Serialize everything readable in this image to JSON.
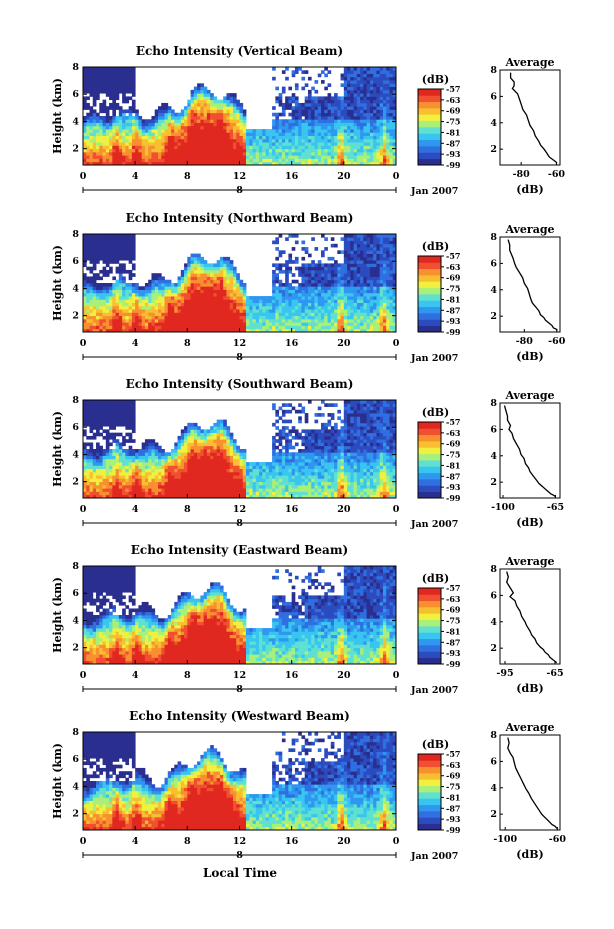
{
  "figure": {
    "xlabel": "Local Time",
    "date_label": "Jan 2007"
  },
  "colors": {
    "colormap": [
      "#2a2f8f",
      "#2b4bbf",
      "#2f6fe0",
      "#2f97f0",
      "#38c6f0",
      "#5fe0d0",
      "#a8f07a",
      "#f0f040",
      "#f8c030",
      "#f89030",
      "#f05030",
      "#e02820"
    ]
  },
  "chart_data": [
    {
      "type": "heatmap",
      "title": "Echo Intensity (Vertical Beam)",
      "ylabel": "Height (km)",
      "x_ticks": [
        "0",
        "4",
        "8",
        "12",
        "16",
        "20",
        "0"
      ],
      "day_label": "8",
      "y_ticks": [
        "2",
        "4",
        "6",
        "8"
      ],
      "xlim": [
        0,
        24
      ],
      "ylim": [
        0.8,
        8
      ],
      "colorbar": {
        "unit": "(dB)",
        "ticks": [
          "-57",
          "-63",
          "-69",
          "-75",
          "-81",
          "-87",
          "-93",
          "-99"
        ],
        "range": [
          -99,
          -57
        ]
      },
      "profile": {
        "title": "Average",
        "xlabel": "(dB)",
        "x_ticks": [
          "-80",
          "-60"
        ],
        "y_ticks": [
          "2",
          "4",
          "6",
          "8"
        ],
        "xlim": [
          -92,
          -58
        ],
        "ylim": [
          0.8,
          8
        ],
        "x": [
          -86,
          -86,
          -84,
          -84,
          -85,
          -82,
          -81,
          -80,
          -79,
          -77,
          -76,
          -75,
          -73,
          -72,
          -70,
          -69,
          -67,
          -66,
          -65,
          -64,
          -63,
          -61,
          -60,
          -60
        ],
        "y": [
          7.8,
          7.4,
          7.1,
          6.8,
          6.6,
          6.2,
          5.8,
          5.4,
          5.0,
          4.6,
          4.2,
          3.8,
          3.4,
          3.0,
          2.6,
          2.3,
          2.0,
          1.8,
          1.6,
          1.4,
          1.3,
          1.1,
          1.0,
          0.9
        ]
      }
    },
    {
      "type": "heatmap",
      "title": "Echo Intensity (Northward Beam)",
      "ylabel": "Height (km)",
      "x_ticks": [
        "0",
        "4",
        "8",
        "12",
        "16",
        "20",
        "0"
      ],
      "day_label": "8",
      "y_ticks": [
        "2",
        "4",
        "6",
        "8"
      ],
      "xlim": [
        0,
        24
      ],
      "ylim": [
        0.8,
        8
      ],
      "colorbar": {
        "unit": "(dB)",
        "ticks": [
          "-57",
          "-63",
          "-69",
          "-75",
          "-81",
          "-87",
          "-93",
          "-99"
        ],
        "range": [
          -99,
          -57
        ]
      },
      "profile": {
        "title": "Average",
        "xlabel": "(dB)",
        "x_ticks": [
          "-80",
          "-60"
        ],
        "y_ticks": [
          "2",
          "4",
          "6",
          "8"
        ],
        "xlim": [
          -95,
          -58
        ],
        "ylim": [
          0.8,
          8
        ],
        "x": [
          -90,
          -89,
          -89,
          -88,
          -87,
          -86,
          -85,
          -83,
          -81,
          -80,
          -78,
          -77,
          -76,
          -75,
          -73,
          -71,
          -70,
          -68,
          -67,
          -65,
          -63,
          -62,
          -60,
          -60
        ],
        "y": [
          7.8,
          7.4,
          7.0,
          6.7,
          6.4,
          6.0,
          5.7,
          5.3,
          4.9,
          4.5,
          4.1,
          3.7,
          3.3,
          3.0,
          2.7,
          2.4,
          2.1,
          1.9,
          1.7,
          1.5,
          1.3,
          1.1,
          1.0,
          0.9
        ]
      }
    },
    {
      "type": "heatmap",
      "title": "Echo Intensity (Southward Beam)",
      "ylabel": "Height (km)",
      "x_ticks": [
        "0",
        "4",
        "8",
        "12",
        "16",
        "20",
        "0"
      ],
      "day_label": "8",
      "y_ticks": [
        "2",
        "4",
        "6",
        "8"
      ],
      "xlim": [
        0,
        24
      ],
      "ylim": [
        0.8,
        8
      ],
      "colorbar": {
        "unit": "(dB)",
        "ticks": [
          "-57",
          "-63",
          "-69",
          "-75",
          "-81",
          "-87",
          "-93",
          "-99"
        ],
        "range": [
          -99,
          -57
        ]
      },
      "profile": {
        "title": "Average",
        "xlabel": "(dB)",
        "x_ticks": [
          "-100",
          "-65"
        ],
        "y_ticks": [
          "2",
          "4",
          "6",
          "8"
        ],
        "xlim": [
          -102,
          -62
        ],
        "ylim": [
          0.8,
          8
        ],
        "x": [
          -99,
          -98,
          -97,
          -97,
          -95,
          -96,
          -94,
          -93,
          -91,
          -89,
          -88,
          -86,
          -85,
          -83,
          -82,
          -80,
          -78,
          -76,
          -74,
          -72,
          -70,
          -68,
          -66,
          -65
        ],
        "y": [
          7.8,
          7.4,
          7.0,
          6.7,
          6.3,
          6.0,
          5.7,
          5.3,
          4.9,
          4.5,
          4.1,
          3.8,
          3.4,
          3.1,
          2.8,
          2.5,
          2.2,
          1.9,
          1.7,
          1.5,
          1.3,
          1.1,
          1.0,
          0.9
        ]
      }
    },
    {
      "type": "heatmap",
      "title": "Echo Intensity (Eastward Beam)",
      "ylabel": "Height (km)",
      "x_ticks": [
        "0",
        "4",
        "8",
        "12",
        "16",
        "20",
        "0"
      ],
      "day_label": "8",
      "y_ticks": [
        "2",
        "4",
        "6",
        "8"
      ],
      "xlim": [
        0,
        24
      ],
      "ylim": [
        0.8,
        8
      ],
      "colorbar": {
        "unit": "(dB)",
        "ticks": [
          "-57",
          "-63",
          "-69",
          "-75",
          "-81",
          "-87",
          "-93",
          "-99"
        ],
        "range": [
          -99,
          -57
        ]
      },
      "profile": {
        "title": "Average",
        "xlabel": "(dB)",
        "x_ticks": [
          "-95",
          "-65"
        ],
        "y_ticks": [
          "2",
          "4",
          "6",
          "8"
        ],
        "xlim": [
          -98,
          -62
        ],
        "ylim": [
          0.8,
          8
        ],
        "x": [
          -94,
          -93,
          -94,
          -92,
          -90,
          -92,
          -89,
          -88,
          -86,
          -85,
          -83,
          -82,
          -80,
          -79,
          -77,
          -76,
          -74,
          -72,
          -71,
          -69,
          -68,
          -66,
          -65,
          -64
        ],
        "y": [
          7.8,
          7.4,
          7.0,
          6.6,
          6.2,
          5.9,
          5.6,
          5.2,
          4.8,
          4.4,
          4.0,
          3.7,
          3.3,
          3.0,
          2.7,
          2.4,
          2.1,
          1.9,
          1.7,
          1.5,
          1.3,
          1.1,
          1.0,
          0.9
        ]
      }
    },
    {
      "type": "heatmap",
      "title": "Echo Intensity (Westward Beam)",
      "ylabel": "Height (km)",
      "x_ticks": [
        "0",
        "4",
        "8",
        "12",
        "16",
        "20",
        "0"
      ],
      "day_label": "8",
      "y_ticks": [
        "2",
        "4",
        "6",
        "8"
      ],
      "xlim": [
        0,
        24
      ],
      "ylim": [
        0.8,
        8
      ],
      "colorbar": {
        "unit": "(dB)",
        "ticks": [
          "-57",
          "-63",
          "-69",
          "-75",
          "-81",
          "-87",
          "-93",
          "-99"
        ],
        "range": [
          -99,
          -57
        ]
      },
      "profile": {
        "title": "Average",
        "xlabel": "(dB)",
        "x_ticks": [
          "-100",
          "-60"
        ],
        "y_ticks": [
          "2",
          "4",
          "6",
          "8"
        ],
        "xlim": [
          -104,
          -58
        ],
        "ylim": [
          0.8,
          8
        ],
        "x": [
          -98,
          -97,
          -98,
          -96,
          -94,
          -93,
          -92,
          -90,
          -88,
          -86,
          -84,
          -82,
          -80,
          -78,
          -76,
          -74,
          -72,
          -70,
          -68,
          -66,
          -64,
          -62,
          -61,
          -60
        ],
        "y": [
          7.8,
          7.4,
          7.0,
          6.6,
          6.3,
          5.9,
          5.5,
          5.1,
          4.7,
          4.3,
          3.9,
          3.6,
          3.2,
          2.9,
          2.6,
          2.3,
          2.0,
          1.8,
          1.6,
          1.4,
          1.2,
          1.1,
          1.0,
          0.9
        ]
      }
    }
  ]
}
